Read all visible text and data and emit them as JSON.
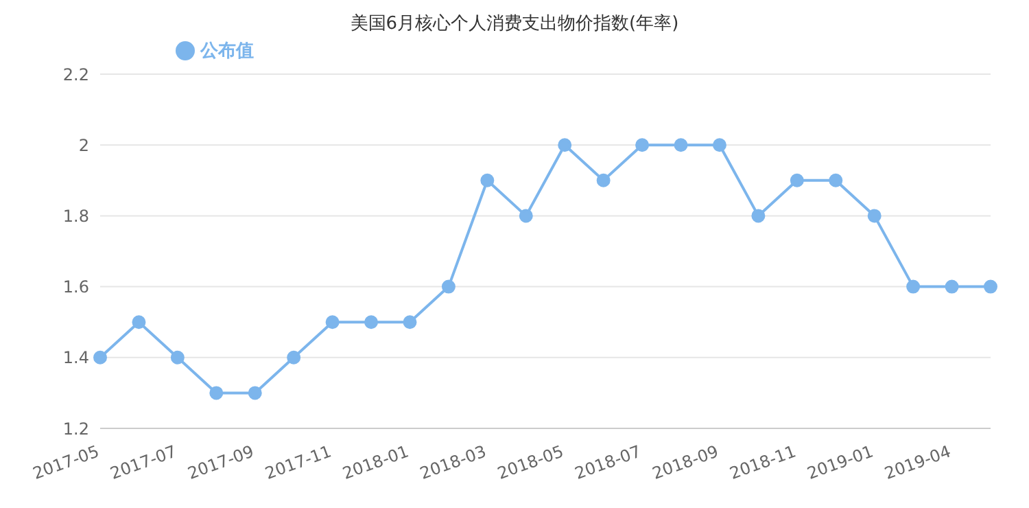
{
  "chart_data": {
    "type": "line",
    "title": "美国6月核心个人消费支出物价指数(年率)",
    "categories": [
      "2017-05",
      null,
      "2017-07",
      null,
      "2017-09",
      null,
      "2017-11",
      null,
      "2018-01",
      null,
      "2018-03",
      null,
      "2018-05",
      null,
      "2018-07",
      null,
      "2018-09",
      null,
      "2018-11",
      null,
      "2019-01",
      null,
      "2019-04",
      null
    ],
    "series": [
      {
        "name": "公布值",
        "color": "#7cb5ec",
        "values": [
          1.4,
          1.5,
          1.4,
          1.3,
          1.3,
          1.4,
          1.5,
          1.5,
          1.5,
          1.6,
          1.9,
          1.8,
          2.0,
          1.9,
          2.0,
          2.0,
          2.0,
          1.8,
          1.9,
          1.9,
          1.8,
          1.6,
          1.6,
          1.6
        ]
      }
    ],
    "ylim": [
      1.2,
      2.2
    ],
    "yticks": [
      1.2,
      1.4,
      1.6,
      1.8,
      2,
      2.2
    ],
    "grid": "y",
    "legend": "top left",
    "marker": "circle",
    "line_style": "solid"
  }
}
